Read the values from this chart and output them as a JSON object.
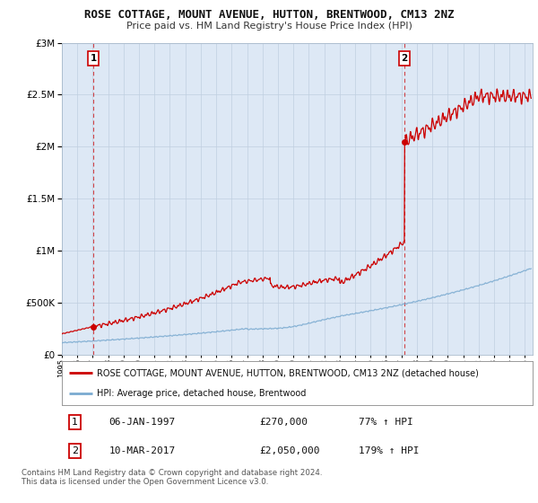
{
  "title": "ROSE COTTAGE, MOUNT AVENUE, HUTTON, BRENTWOOD, CM13 2NZ",
  "subtitle": "Price paid vs. HM Land Registry's House Price Index (HPI)",
  "ylim": [
    0,
    3000000
  ],
  "yticks": [
    0,
    500000,
    1000000,
    1500000,
    2000000,
    2500000,
    3000000
  ],
  "ytick_labels": [
    "£0",
    "£500K",
    "£1M",
    "£1.5M",
    "£2M",
    "£2.5M",
    "£3M"
  ],
  "sale1_date_x": 1997.04,
  "sale1_value": 270000,
  "sale1_label": "1",
  "sale2_date_x": 2017.19,
  "sale2_value": 2050000,
  "sale2_label": "2",
  "red_line_color": "#cc0000",
  "blue_line_color": "#7aaad0",
  "dashed_color": "#cc0000",
  "background_color": "#dde8f5",
  "plot_bg_color": "#dde8f5",
  "legend_label_red": "ROSE COTTAGE, MOUNT AVENUE, HUTTON, BRENTWOOD, CM13 2NZ (detached house)",
  "legend_label_blue": "HPI: Average price, detached house, Brentwood",
  "table_row1": [
    "1",
    "06-JAN-1997",
    "£270,000",
    "77% ↑ HPI"
  ],
  "table_row2": [
    "2",
    "10-MAR-2017",
    "£2,050,000",
    "179% ↑ HPI"
  ],
  "footer": "Contains HM Land Registry data © Crown copyright and database right 2024.\nThis data is licensed under the Open Government Licence v3.0.",
  "xmin": 1995,
  "xmax": 2025.5
}
